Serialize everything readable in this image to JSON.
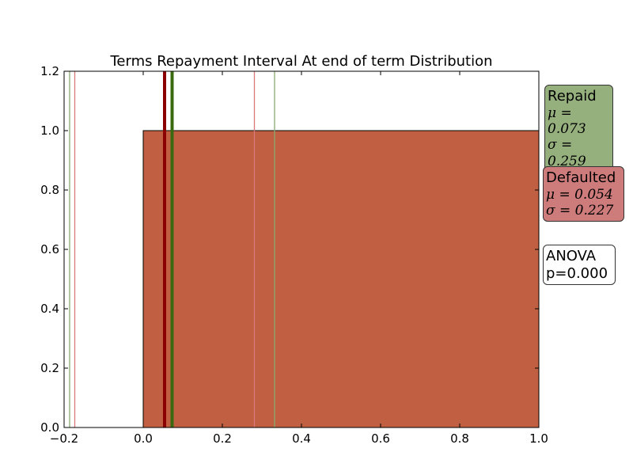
{
  "chart_data": {
    "type": "bar",
    "title": "Terms Repayment Interval At end of term Distribution",
    "xlabel": "",
    "ylabel": "",
    "xlim": [
      -0.2,
      1.0
    ],
    "ylim": [
      0.0,
      1.2
    ],
    "x_ticks": [
      "−0.2",
      "0.0",
      "0.2",
      "0.4",
      "0.6",
      "0.8",
      "1.0"
    ],
    "x_tick_values": [
      -0.2,
      0.0,
      0.2,
      0.4,
      0.6,
      0.8,
      1.0
    ],
    "y_ticks": [
      "0.0",
      "0.2",
      "0.4",
      "0.6",
      "0.8",
      "1.0",
      "1.2"
    ],
    "y_tick_values": [
      0.0,
      0.2,
      0.4,
      0.6,
      0.8,
      1.0,
      1.2
    ],
    "bars": [
      {
        "series": "Repaid",
        "x_start": 0.0,
        "x_end": 1.0,
        "value": 1.0,
        "color": "#4a7a1e"
      },
      {
        "series": "Defaulted",
        "x_start": 0.0,
        "x_end": 1.0,
        "value": 1.0,
        "color": "#c05f42"
      }
    ],
    "series": [
      {
        "name": "Repaid",
        "mean": 0.073,
        "std": 0.259,
        "mean_color": "#3a6a10",
        "thin_color": "#8aaa70",
        "legend_bg": "#95b07d",
        "mu_label": "μ = 0.073",
        "sigma_label": "σ = 0.259"
      },
      {
        "name": "Defaulted",
        "mean": 0.054,
        "std": 0.227,
        "mean_color": "#8b0000",
        "thin_color": "#d97a7a",
        "legend_bg": "#cd7b7b",
        "mu_label": "μ = 0.054",
        "sigma_label": "σ = 0.227"
      }
    ],
    "anova": {
      "line1": "ANOVA",
      "line2": "p=0.000"
    }
  }
}
